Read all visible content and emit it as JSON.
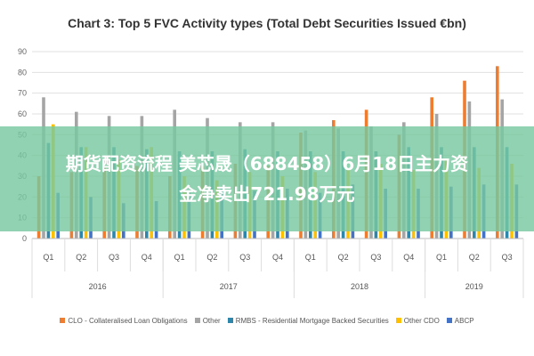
{
  "chart_data": {
    "type": "bar",
    "title": "Chart 3: Top 5 FVC Activity types (Total Debt Securities Issued €bn)",
    "ylim": [
      0,
      90
    ],
    "yticks": [
      0,
      10,
      20,
      30,
      40,
      50,
      60,
      70,
      80,
      90
    ],
    "grid": true,
    "legend_position": "bottom",
    "categories": [
      "Q1",
      "Q2",
      "Q3",
      "Q4",
      "Q1",
      "Q2",
      "Q3",
      "Q4",
      "Q1",
      "Q2",
      "Q3",
      "Q4",
      "Q1",
      "Q2",
      "Q3"
    ],
    "years": [
      {
        "label": "2016",
        "span": 4
      },
      {
        "label": "2017",
        "span": 4
      },
      {
        "label": "2018",
        "span": 4
      },
      {
        "label": "2019",
        "span": 3
      }
    ],
    "series": [
      {
        "name": "CLO - Collateralised Loan Obligations",
        "color": "#ed7d31",
        "values": [
          30,
          32,
          34,
          35,
          30,
          35,
          36,
          35,
          51,
          57,
          62,
          50,
          68,
          76,
          83
        ]
      },
      {
        "name": "Other",
        "color": "#a5a5a5",
        "values": [
          68,
          61,
          59,
          59,
          62,
          58,
          56,
          56,
          52,
          53,
          54,
          56,
          60,
          66,
          67
        ]
      },
      {
        "name": "RMBS - Residential Mortgage Backed Securities",
        "color": "#2e86ab",
        "values": [
          46,
          44,
          44,
          43,
          42,
          42,
          43,
          42,
          42,
          42,
          42,
          44,
          44,
          44,
          44
        ]
      },
      {
        "name": "Other CDO",
        "color": "#ffc000",
        "values": [
          55,
          44,
          38,
          44,
          30,
          28,
          32,
          30,
          32,
          34,
          36,
          33,
          38,
          34,
          36
        ]
      },
      {
        "name": "ABCP",
        "color": "#4472c4",
        "values": [
          22,
          20,
          17,
          18,
          22,
          24,
          23,
          24,
          22,
          26,
          24,
          24,
          25,
          26,
          26
        ]
      }
    ]
  },
  "banner": {
    "line1": "期货配资流程 美芯晟（688458）6月18日主力资",
    "line2": "金净卖出721.98万元"
  }
}
